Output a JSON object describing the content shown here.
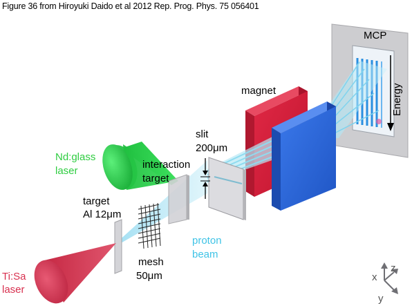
{
  "caption": "Figure 36 from Hiroyuki Daido et al 2012 Rep. Prog. Phys. 75 056401",
  "labels": {
    "mcp": "MCP",
    "energy": "Energy",
    "magnet": "magnet",
    "slit_line1": "slit",
    "slit_line2": "200μm",
    "ndglass_line1": "Nd:glass",
    "ndglass_line2": "laser",
    "interaction_line1": "interaction",
    "interaction_line2": "target",
    "target_line1": "target",
    "target_line2": "Al 12μm",
    "proton_line1": "proton",
    "proton_line2": "beam",
    "mesh_line1": "mesh",
    "mesh_line2": "50μm",
    "tisa_line1": "Ti:Sa",
    "tisa_line2": "laser",
    "axis_x": "x",
    "axis_y": "y",
    "axis_z": "z"
  },
  "colors": {
    "ndglass_laser": "#22cc44",
    "tisa_laser": "#d8304f",
    "magnet_red": "#d41f3a",
    "magnet_blue": "#2a64d8",
    "proton_beam": "#9fdff0",
    "label_green": "#2ecc40",
    "label_cyan": "#3fc3e6",
    "label_red": "#d8304f",
    "mcp_frame": "#c9c9cc"
  }
}
